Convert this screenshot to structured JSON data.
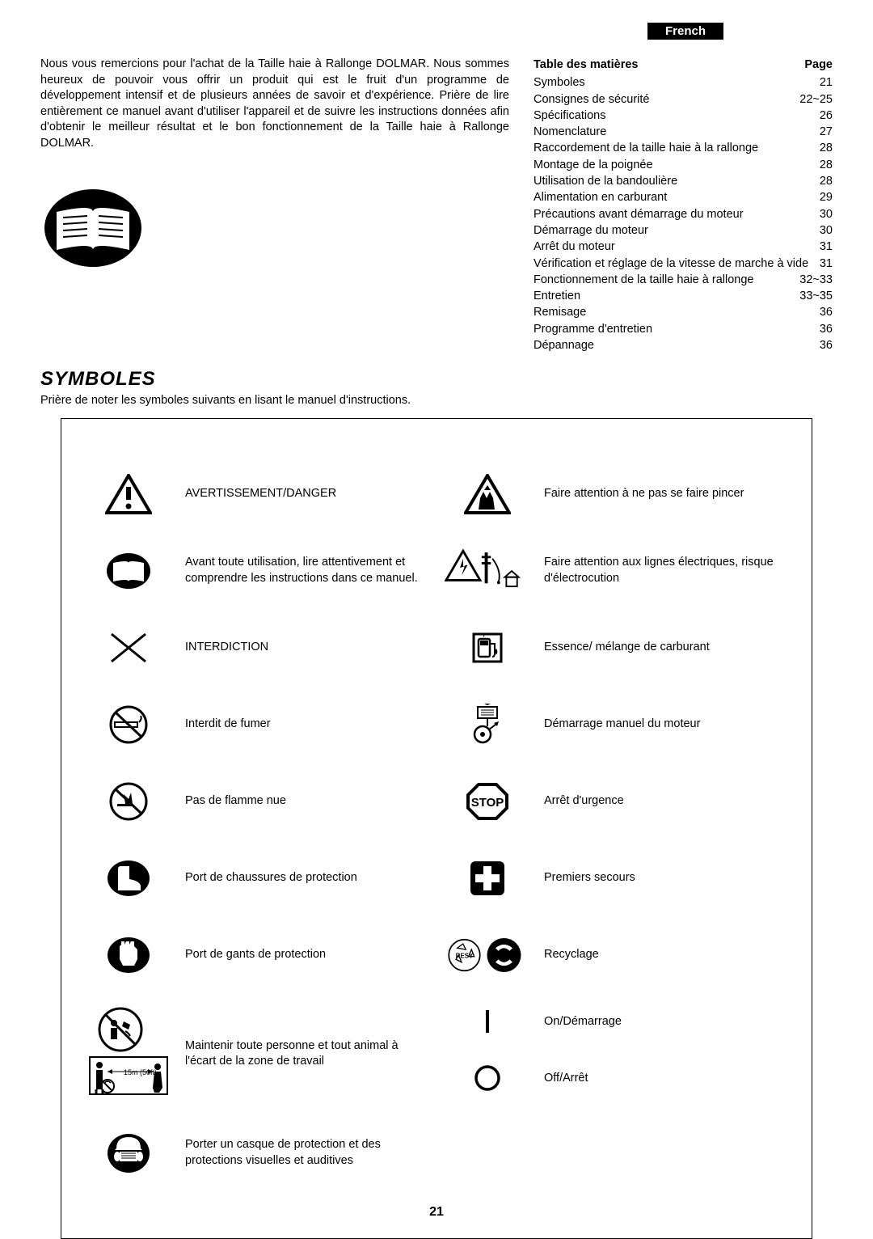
{
  "lang_badge": "French",
  "intro": "Nous vous remercions pour l'achat de la Taille haie à Rallonge DOLMAR. Nous sommes heureux de pouvoir vous offrir un produit qui est le fruit d'un programme de développement intensif et de plusieurs années de savoir et d'expérience. Prière de lire entièrement ce manuel avant d'utiliser l'appareil et de suivre les instructions données afin d'obtenir le meilleur résultat et le bon fonctionnement de la Taille haie à Rallonge DOLMAR.",
  "toc": {
    "header_title": "Table des matières",
    "header_page": "Page",
    "rows": [
      {
        "t": "Symboles",
        "p": "21"
      },
      {
        "t": "Consignes de sécurité",
        "p": "22~25"
      },
      {
        "t": "Spécifications",
        "p": "26"
      },
      {
        "t": "Nomenclature",
        "p": "27"
      },
      {
        "t": "Raccordement de la taille haie à la rallonge",
        "p": "28"
      },
      {
        "t": "Montage de la poignée",
        "p": "28"
      },
      {
        "t": "Utilisation de la bandoulière",
        "p": "28"
      },
      {
        "t": "Alimentation en carburant",
        "p": "29"
      },
      {
        "t": "Précautions avant démarrage du moteur",
        "p": "30"
      },
      {
        "t": "Démarrage du moteur",
        "p": "30"
      },
      {
        "t": "Arrêt du moteur",
        "p": "31"
      },
      {
        "t": "Vérification et réglage de la vitesse de marche à vide",
        "p": "31"
      },
      {
        "t": "Fonctionnement de la taille haie à rallonge",
        "p": "32~33"
      },
      {
        "t": "Entretien",
        "p": "33~35"
      },
      {
        "t": "Remisage",
        "p": "36"
      },
      {
        "t": "Programme d'entretien",
        "p": "36"
      },
      {
        "t": "Dépannage",
        "p": "36"
      }
    ]
  },
  "section_title": "SYMBOLES",
  "subtitle": "Prière de noter les symboles suivants en lisant le manuel d'instructions.",
  "symbols": {
    "left": [
      {
        "label": "AVERTISSEMENT/DANGER"
      },
      {
        "label": "Avant toute utilisation, lire attentivement et comprendre les instructions dans ce manuel."
      },
      {
        "label": "INTERDICTION"
      },
      {
        "label": "Interdit de fumer"
      },
      {
        "label": "Pas de flamme nue"
      },
      {
        "label": "Port de chaussures de protection"
      },
      {
        "label": "Port de gants de protection"
      },
      {
        "label": "Maintenir toute personne et tout animal à l'écart de la zone de travail"
      },
      {
        "label": "Porter un casque de protection et des protections visuelles et auditives"
      }
    ],
    "right": [
      {
        "label": "Faire attention à ne pas se faire pincer"
      },
      {
        "label": "Faire attention aux lignes électriques, risque d'électrocution"
      },
      {
        "label": "Essence/ mélange de carburant"
      },
      {
        "label": "Démarrage manuel du moteur"
      },
      {
        "label": "Arrêt d'urgence"
      },
      {
        "label": "Premiers secours"
      },
      {
        "label": "Recyclage"
      },
      {
        "label": "On/Démarrage"
      },
      {
        "label": "Off/Arrêt"
      }
    ]
  },
  "page_number": "21"
}
